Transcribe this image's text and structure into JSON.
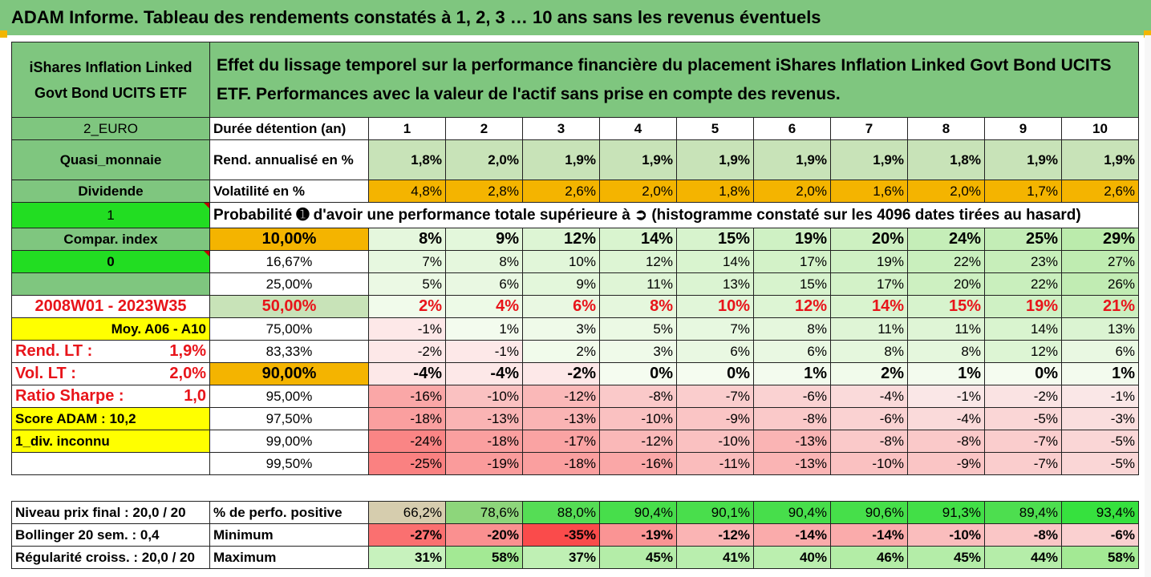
{
  "header": {
    "title": "ADAM Informe. Tableau des rendements constatés à 1, 2, 3 … 10 ans sans les revenus éventuels"
  },
  "fund_name": "iShares Inflation Linked Govt Bond UCITS ETF",
  "description": "Effet du lissage temporel sur la performance financière du placement iShares Inflation Linked Govt Bond UCITS ETF. Performances avec la valeur de l'actif sans prise en compte des revenus.",
  "left": {
    "currency": "2_EURO",
    "category": "Quasi_monnaie",
    "income": "Dividende",
    "flag1": "1",
    "compar_index": "Compar. index",
    "flag0": "0",
    "period": "2008W01 - 2023W35",
    "moy": "Moy. A06 - A10",
    "rend_lt_label": "Rend. LT :",
    "rend_lt_value": "1,9%",
    "vol_lt_label": "Vol. LT :",
    "vol_lt_value": "2,0%",
    "sharpe_label": "Ratio Sharpe :",
    "sharpe_value": "1,0",
    "score": "Score ADAM : 10,2",
    "div": "1_div. inconnu"
  },
  "labels": {
    "duree": "Durée détention (an)",
    "rend": "Rend. annualisé en %",
    "vol": "Volatilité en %",
    "prob": "Probabilité ➊ d'avoir une performance totale supérieure à ➲ (histogramme constaté sur les 4096 dates tirées au hasard)"
  },
  "years": [
    "1",
    "2",
    "3",
    "4",
    "5",
    "6",
    "7",
    "8",
    "9",
    "10"
  ],
  "rend": [
    "1,8%",
    "2,0%",
    "1,9%",
    "1,9%",
    "1,9%",
    "1,9%",
    "1,9%",
    "1,8%",
    "1,9%",
    "1,9%"
  ],
  "vol": [
    "4,8%",
    "2,8%",
    "2,6%",
    "2,0%",
    "1,8%",
    "2,0%",
    "1,6%",
    "2,0%",
    "1,7%",
    "2,6%"
  ],
  "prob_rows": [
    {
      "p": "10,00%",
      "v": [
        "8%",
        "9%",
        "12%",
        "14%",
        "15%",
        "19%",
        "20%",
        "24%",
        "25%",
        "29%"
      ]
    },
    {
      "p": "16,67%",
      "v": [
        "7%",
        "8%",
        "10%",
        "12%",
        "14%",
        "17%",
        "19%",
        "22%",
        "23%",
        "27%"
      ]
    },
    {
      "p": "25,00%",
      "v": [
        "5%",
        "6%",
        "9%",
        "11%",
        "13%",
        "15%",
        "17%",
        "20%",
        "22%",
        "26%"
      ]
    },
    {
      "p": "50,00%",
      "v": [
        "2%",
        "4%",
        "6%",
        "8%",
        "10%",
        "12%",
        "14%",
        "15%",
        "19%",
        "21%"
      ]
    },
    {
      "p": "75,00%",
      "v": [
        "-1%",
        "1%",
        "3%",
        "5%",
        "7%",
        "8%",
        "11%",
        "11%",
        "14%",
        "13%"
      ]
    },
    {
      "p": "83,33%",
      "v": [
        "-2%",
        "-1%",
        "2%",
        "3%",
        "6%",
        "6%",
        "8%",
        "8%",
        "12%",
        "6%"
      ]
    },
    {
      "p": "90,00%",
      "v": [
        "-4%",
        "-4%",
        "-2%",
        "0%",
        "0%",
        "1%",
        "2%",
        "1%",
        "0%",
        "1%"
      ]
    },
    {
      "p": "95,00%",
      "v": [
        "-16%",
        "-10%",
        "-12%",
        "-8%",
        "-7%",
        "-6%",
        "-4%",
        "-1%",
        "-2%",
        "-1%"
      ]
    },
    {
      "p": "97,50%",
      "v": [
        "-18%",
        "-13%",
        "-13%",
        "-10%",
        "-9%",
        "-8%",
        "-6%",
        "-4%",
        "-5%",
        "-3%"
      ]
    },
    {
      "p": "99,00%",
      "v": [
        "-24%",
        "-18%",
        "-17%",
        "-12%",
        "-10%",
        "-13%",
        "-8%",
        "-8%",
        "-7%",
        "-5%"
      ]
    },
    {
      "p": "99,50%",
      "v": [
        "-25%",
        "-19%",
        "-18%",
        "-16%",
        "-11%",
        "-13%",
        "-10%",
        "-9%",
        "-7%",
        "-5%"
      ]
    }
  ],
  "bottom": {
    "niveau": "Niveau prix final : 20,0 / 20",
    "bollinger": "Bollinger 20 sem. :  0,4",
    "regularite": "Régularité croiss. : 20,0 / 20",
    "pos_label": "% de perfo. positive",
    "min_label": "Minimum",
    "max_label": "Maximum",
    "pos": [
      "66,2%",
      "78,6%",
      "88,0%",
      "90,4%",
      "90,1%",
      "90,4%",
      "90,6%",
      "91,3%",
      "89,4%",
      "93,4%"
    ],
    "min": [
      "-27%",
      "-20%",
      "-35%",
      "-19%",
      "-12%",
      "-14%",
      "-14%",
      "-10%",
      "-8%",
      "-6%"
    ],
    "max": [
      "31%",
      "58%",
      "37%",
      "45%",
      "41%",
      "40%",
      "46%",
      "45%",
      "44%",
      "58%"
    ]
  },
  "colors": {
    "green": "#7fc67f",
    "orange": "#f4b400",
    "bright_green": "#22dd22",
    "yellow": "#ffff00",
    "red_text": "#e8141a"
  }
}
